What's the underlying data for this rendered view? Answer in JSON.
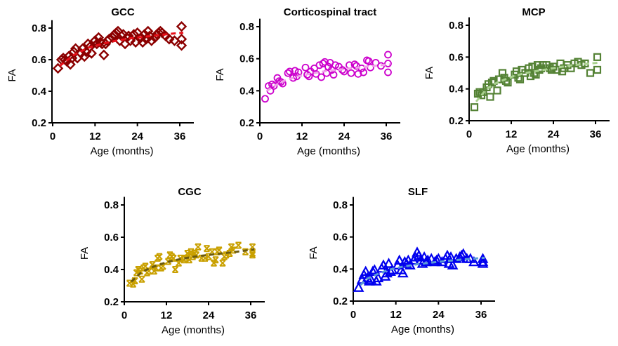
{
  "chart_data": [
    {
      "id": "gcc",
      "type": "scatter",
      "title": "GCC",
      "xlabel": "Age (months)",
      "ylabel": "FA",
      "xlim": [
        0,
        39
      ],
      "ylim": [
        0.2,
        0.85
      ],
      "xticks": [
        0,
        12,
        24,
        36
      ],
      "yticks": [
        0.2,
        0.4,
        0.6,
        0.8
      ],
      "xtick_labels": [
        "0",
        "12",
        "24",
        "36"
      ],
      "ytick_labels": [
        "0.2",
        "0.4",
        "0.6",
        "0.8"
      ],
      "marker": "diamond",
      "marker_color": "#8b0000",
      "fit_color": "#e8101a",
      "fit": {
        "x": [
          2,
          6,
          10,
          14,
          18,
          22,
          26,
          30,
          34,
          37
        ],
        "y": [
          0.56,
          0.63,
          0.675,
          0.7,
          0.72,
          0.735,
          0.745,
          0.755,
          0.765,
          0.77
        ]
      },
      "points": {
        "x": [
          1.5,
          2.5,
          3,
          3.5,
          4,
          4.5,
          5,
          5.5,
          6,
          6.5,
          7,
          8,
          8.5,
          9,
          9.5,
          10,
          10.5,
          11,
          12,
          12.5,
          13,
          13.5,
          14,
          14.5,
          15,
          15.5,
          16,
          17,
          17.5,
          18,
          18.5,
          19,
          19.5,
          20,
          20.5,
          21,
          21.5,
          22,
          23,
          23.5,
          24,
          25,
          25.5,
          26,
          26.5,
          27,
          27.5,
          28,
          29,
          29.5,
          30,
          30.5,
          31,
          32,
          33,
          34.5,
          36.5,
          36.5,
          36.5
        ],
        "y": [
          0.545,
          0.6,
          0.61,
          0.6,
          0.59,
          0.62,
          0.57,
          0.61,
          0.65,
          0.67,
          0.61,
          0.64,
          0.67,
          0.62,
          0.65,
          0.7,
          0.68,
          0.64,
          0.72,
          0.7,
          0.74,
          0.71,
          0.7,
          0.63,
          0.7,
          0.72,
          0.73,
          0.74,
          0.76,
          0.77,
          0.78,
          0.72,
          0.75,
          0.76,
          0.7,
          0.74,
          0.75,
          0.72,
          0.76,
          0.71,
          0.77,
          0.74,
          0.71,
          0.76,
          0.73,
          0.78,
          0.75,
          0.72,
          0.74,
          0.76,
          0.77,
          0.78,
          0.77,
          0.75,
          0.73,
          0.72,
          0.81,
          0.73,
          0.69
        ]
      }
    },
    {
      "id": "corticospinal",
      "type": "scatter",
      "title": "Corticospinal tract",
      "xlabel": "Age (months)",
      "ylabel": "FA",
      "xlim": [
        0,
        39
      ],
      "ylim": [
        0.2,
        0.85
      ],
      "xticks": [
        0,
        12,
        24,
        36
      ],
      "yticks": [
        0.2,
        0.4,
        0.6,
        0.8
      ],
      "xtick_labels": [
        "0",
        "12",
        "24",
        "36"
      ],
      "ytick_labels": [
        "0.2",
        "0.4",
        "0.6",
        "0.8"
      ],
      "marker": "circle",
      "marker_color": "#cc00cc",
      "fit_color": "#f0a0e8",
      "fit": {
        "x": [
          2,
          6,
          10,
          14,
          18,
          22,
          26,
          30,
          34,
          37
        ],
        "y": [
          0.4,
          0.455,
          0.485,
          0.505,
          0.52,
          0.53,
          0.54,
          0.55,
          0.558,
          0.565
        ]
      },
      "points": {
        "x": [
          1.5,
          2.5,
          3,
          3.5,
          4,
          5,
          5.5,
          6,
          6.5,
          8,
          8.5,
          9.5,
          10,
          10.5,
          11,
          13,
          13.5,
          14,
          14.5,
          15.5,
          16,
          17,
          17.5,
          18,
          18.5,
          19,
          19.5,
          20,
          20.5,
          21,
          21.5,
          22.5,
          23.5,
          24,
          25.5,
          26,
          27,
          27.5,
          28,
          29,
          29.5,
          30.5,
          31,
          31.5,
          33,
          34.5,
          36.5,
          36.5,
          36.5
        ],
        "y": [
          0.35,
          0.43,
          0.4,
          0.44,
          0.43,
          0.48,
          0.46,
          0.455,
          0.445,
          0.51,
          0.52,
          0.48,
          0.525,
          0.49,
          0.515,
          0.545,
          0.5,
          0.49,
          0.52,
          0.54,
          0.505,
          0.56,
          0.485,
          0.57,
          0.58,
          0.51,
          0.55,
          0.575,
          0.53,
          0.5,
          0.56,
          0.55,
          0.53,
          0.52,
          0.56,
          0.51,
          0.565,
          0.555,
          0.505,
          0.54,
          0.515,
          0.59,
          0.585,
          0.545,
          0.575,
          0.555,
          0.625,
          0.57,
          0.515
        ]
      }
    },
    {
      "id": "mcp",
      "type": "scatter",
      "title": "MCP",
      "xlabel": "Age (months)",
      "ylabel": "FA",
      "xlim": [
        0,
        39
      ],
      "ylim": [
        0.2,
        0.85
      ],
      "xticks": [
        0,
        12,
        24,
        36
      ],
      "yticks": [
        0.2,
        0.4,
        0.6,
        0.8
      ],
      "xtick_labels": [
        "0",
        "12",
        "24",
        "36"
      ],
      "ytick_labels": [
        "0.2",
        "0.4",
        "0.6",
        "0.8"
      ],
      "marker": "square",
      "marker_color": "#548235",
      "fit_color": "#a9d18e",
      "fit": {
        "x": [
          2,
          5,
          8,
          12,
          16,
          20,
          24,
          28,
          32,
          37
        ],
        "y": [
          0.32,
          0.4,
          0.44,
          0.475,
          0.5,
          0.515,
          0.53,
          0.545,
          0.555,
          0.565
        ]
      },
      "points": {
        "x": [
          1.5,
          2.5,
          3,
          3.5,
          4,
          5,
          5.5,
          6,
          6.5,
          7,
          8,
          8.5,
          9.5,
          10,
          10.5,
          11,
          13,
          13.5,
          14,
          14.5,
          15,
          16,
          17,
          17.5,
          18,
          18.5,
          19,
          19.5,
          20,
          20.5,
          21,
          22,
          23,
          23.5,
          24,
          25,
          26,
          26.5,
          27,
          28,
          29,
          30,
          31,
          32,
          33,
          34.5,
          36.5,
          36.5
        ],
        "y": [
          0.285,
          0.37,
          0.38,
          0.36,
          0.38,
          0.41,
          0.43,
          0.35,
          0.44,
          0.45,
          0.39,
          0.46,
          0.5,
          0.47,
          0.45,
          0.44,
          0.49,
          0.51,
          0.47,
          0.46,
          0.52,
          0.5,
          0.53,
          0.48,
          0.54,
          0.5,
          0.49,
          0.55,
          0.52,
          0.53,
          0.55,
          0.55,
          0.53,
          0.52,
          0.54,
          0.52,
          0.56,
          0.51,
          0.53,
          0.55,
          0.53,
          0.56,
          0.57,
          0.55,
          0.56,
          0.5,
          0.6,
          0.52
        ]
      }
    },
    {
      "id": "cgc",
      "type": "scatter",
      "title": "CGC",
      "xlabel": "Age (months)",
      "ylabel": "FA",
      "xlim": [
        0,
        39
      ],
      "ylim": [
        0.2,
        0.85
      ],
      "xticks": [
        0,
        12,
        24,
        36
      ],
      "yticks": [
        0.2,
        0.4,
        0.6,
        0.8
      ],
      "xtick_labels": [
        "0",
        "12",
        "24",
        "36"
      ],
      "ytick_labels": [
        "0.2",
        "0.4",
        "0.6",
        "0.8"
      ],
      "marker": "cross",
      "marker_color": "#c9a000",
      "fit_color": "#6b5a10",
      "fit": {
        "x": [
          2,
          5,
          8,
          12,
          16,
          20,
          24,
          28,
          32,
          37
        ],
        "y": [
          0.325,
          0.385,
          0.415,
          0.445,
          0.465,
          0.48,
          0.49,
          0.5,
          0.51,
          0.525
        ]
      },
      "points": {
        "x": [
          1.5,
          2.5,
          3,
          3.5,
          4,
          4.5,
          5,
          5.5,
          6,
          6.5,
          7,
          8,
          8.5,
          9,
          9.5,
          10,
          10.5,
          11,
          12.5,
          13,
          13.5,
          14,
          14.5,
          15.5,
          16,
          17,
          17.5,
          18,
          18.5,
          19,
          19.5,
          20,
          20.5,
          21,
          22,
          23,
          23.5,
          24,
          25,
          25.5,
          26,
          26.5,
          27,
          28,
          28.5,
          29,
          30,
          30.5,
          31,
          32.5,
          34.5,
          36.5,
          36.5,
          36.5
        ],
        "y": [
          0.315,
          0.31,
          0.33,
          0.38,
          0.4,
          0.39,
          0.34,
          0.41,
          0.42,
          0.38,
          0.39,
          0.43,
          0.39,
          0.41,
          0.47,
          0.48,
          0.41,
          0.42,
          0.45,
          0.49,
          0.48,
          0.47,
          0.4,
          0.44,
          0.47,
          0.46,
          0.47,
          0.5,
          0.46,
          0.51,
          0.48,
          0.5,
          0.49,
          0.54,
          0.47,
          0.47,
          0.53,
          0.48,
          0.51,
          0.44,
          0.46,
          0.51,
          0.52,
          0.44,
          0.48,
          0.49,
          0.5,
          0.54,
          0.52,
          0.55,
          0.51,
          0.54,
          0.5,
          0.49
        ]
      }
    },
    {
      "id": "slf",
      "type": "scatter",
      "title": "SLF",
      "xlabel": "Age (months)",
      "ylabel": "FA",
      "xlim": [
        0,
        39
      ],
      "ylim": [
        0.2,
        0.85
      ],
      "xticks": [
        0,
        12,
        24,
        36
      ],
      "yticks": [
        0.2,
        0.4,
        0.6,
        0.8
      ],
      "xtick_labels": [
        "0",
        "12",
        "24",
        "36"
      ],
      "ytick_labels": [
        "0.2",
        "0.4",
        "0.6",
        "0.8"
      ],
      "marker": "triangle",
      "marker_color": "#0000ee",
      "fit_color": "#5b9bd5",
      "fit": {
        "x": [
          2,
          4,
          7,
          10,
          14,
          18,
          22,
          26,
          30,
          34,
          37
        ],
        "y": [
          0.3,
          0.34,
          0.37,
          0.395,
          0.415,
          0.43,
          0.44,
          0.45,
          0.458,
          0.465,
          0.47
        ]
      },
      "points": {
        "x": [
          1.5,
          2.5,
          3,
          3.5,
          4,
          4.5,
          5,
          5.5,
          6,
          6.5,
          7,
          8,
          8.5,
          9,
          9.5,
          10,
          10.5,
          11,
          12.5,
          13,
          13.5,
          14,
          14.5,
          15,
          15.5,
          16,
          17,
          17.5,
          18,
          18.5,
          19,
          19.5,
          20,
          20.5,
          21,
          22,
          23,
          23.5,
          24,
          25,
          26,
          26.5,
          27,
          27.5,
          28,
          29,
          30,
          30.5,
          31,
          32,
          33,
          34,
          36.5,
          36.5,
          36.5
        ],
        "y": [
          0.28,
          0.33,
          0.36,
          0.38,
          0.34,
          0.32,
          0.33,
          0.38,
          0.39,
          0.32,
          0.34,
          0.4,
          0.42,
          0.35,
          0.37,
          0.43,
          0.38,
          0.39,
          0.42,
          0.45,
          0.39,
          0.37,
          0.44,
          0.43,
          0.45,
          0.42,
          0.45,
          0.47,
          0.5,
          0.48,
          0.45,
          0.43,
          0.47,
          0.44,
          0.45,
          0.46,
          0.44,
          0.45,
          0.46,
          0.44,
          0.46,
          0.48,
          0.43,
          0.47,
          0.42,
          0.46,
          0.47,
          0.48,
          0.49,
          0.46,
          0.46,
          0.44,
          0.46,
          0.44,
          0.43
        ]
      }
    }
  ]
}
